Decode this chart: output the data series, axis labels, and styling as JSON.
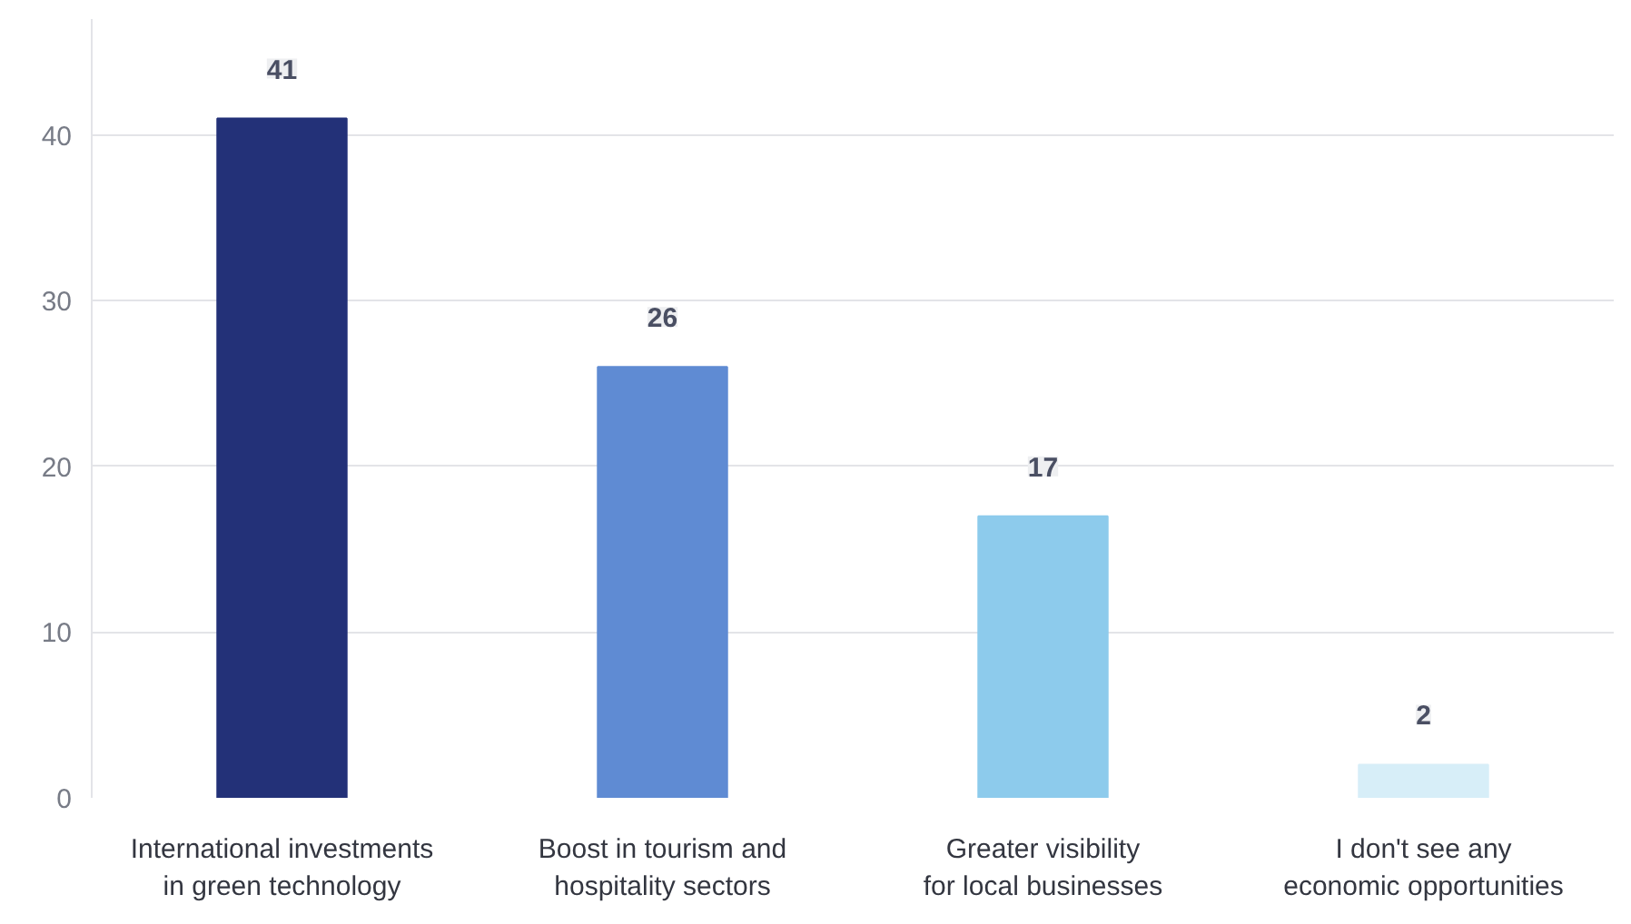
{
  "chart_data": {
    "type": "bar",
    "categories": [
      "International investments in green technology",
      "Boost in tourism and hospitality sectors",
      "Greater visibility for local businesses",
      "I don't see any economic opportunities"
    ],
    "values": [
      41,
      26,
      17,
      2
    ],
    "colors": [
      "#233178",
      "#5f8bd3",
      "#8dcbec",
      "#d7eef8"
    ],
    "ylim": [
      0,
      47
    ],
    "yticks": [
      0,
      10,
      20,
      30,
      40
    ],
    "grid": "y",
    "data_labels": true
  }
}
